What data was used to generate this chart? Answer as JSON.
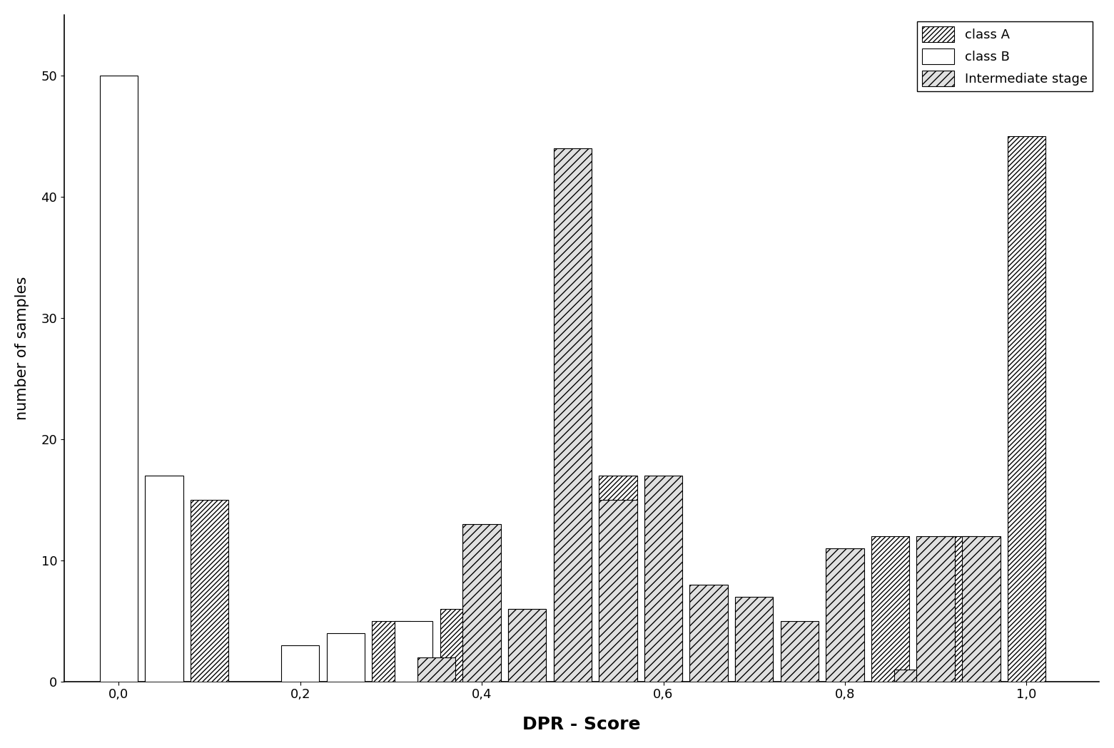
{
  "title": "",
  "xlabel": "DPR - Score",
  "ylabel": "number of samples",
  "ylim": [
    0,
    55
  ],
  "yticks": [
    0,
    10,
    20,
    30,
    40,
    50
  ],
  "xtick_labels": [
    "0,0",
    "0,2",
    "0,4",
    "0,6",
    "0,8",
    "1,0"
  ],
  "xtick_positions": [
    0.0,
    0.2,
    0.4,
    0.6,
    0.8,
    1.0
  ],
  "background_color": "#ffffff",
  "classA": {
    "label": "class A",
    "positions": [
      0.05,
      0.1,
      0.3,
      0.375,
      0.5,
      0.55,
      0.7,
      0.85,
      0.925,
      1.0
    ],
    "values": [
      15,
      15,
      5,
      6,
      15,
      17,
      6,
      12,
      12,
      45
    ]
  },
  "classB": {
    "label": "class B",
    "positions": [
      0.0,
      0.05,
      0.2,
      0.25,
      0.325,
      0.4,
      0.45,
      0.6,
      0.7
    ],
    "values": [
      50,
      17,
      3,
      4,
      5,
      4,
      6,
      8,
      5
    ]
  },
  "intermediate": {
    "label": "Intermediate stage",
    "positions": [
      0.35,
      0.4,
      0.45,
      0.5,
      0.55,
      0.6,
      0.65,
      0.7,
      0.75,
      0.8,
      0.875,
      0.9,
      0.95
    ],
    "values": [
      2,
      13,
      6,
      44,
      15,
      17,
      8,
      7,
      5,
      11,
      1,
      12,
      12
    ]
  },
  "bar_width": 0.042
}
